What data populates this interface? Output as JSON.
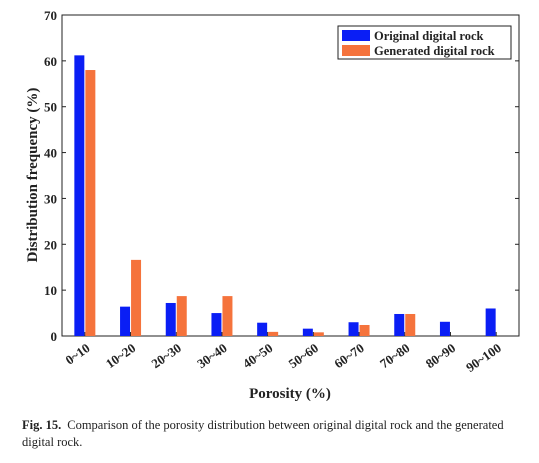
{
  "chart_data": {
    "type": "bar",
    "categories": [
      "0~10",
      "10~20",
      "20~30",
      "30~40",
      "40~50",
      "50~60",
      "60~70",
      "70~80",
      "80~90",
      "90~100"
    ],
    "series": [
      {
        "name": "Original digital rock",
        "color": "#0a1ef5",
        "values": [
          61.2,
          6.4,
          7.2,
          5.0,
          2.9,
          1.6,
          3.0,
          4.8,
          3.1,
          6.0
        ]
      },
      {
        "name": "Generated digital rock",
        "color": "#f5733c",
        "values": [
          58.0,
          16.6,
          8.7,
          8.7,
          0.9,
          0.8,
          2.4,
          4.8,
          0.0,
          0.0
        ]
      }
    ],
    "xlabel": "Porosity (%)",
    "ylabel": "Distribution frequency (%)",
    "ylim": [
      0,
      70
    ],
    "yticks": [
      0,
      10,
      20,
      30,
      40,
      50,
      60,
      70
    ],
    "legend_position": "top-right",
    "grid": false
  },
  "caption": {
    "label": "Fig. 15.",
    "text": "Comparison of the porosity distribution between original digital rock and the generated digital rock."
  }
}
